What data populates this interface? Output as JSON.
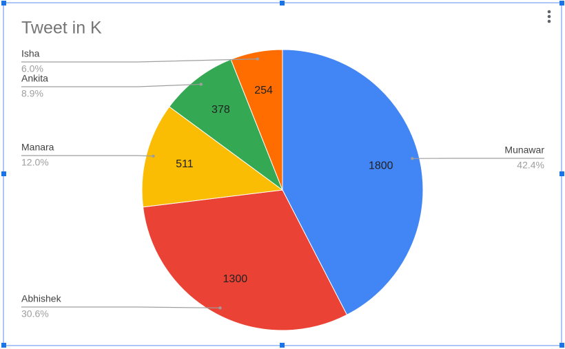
{
  "chart_data": {
    "type": "pie",
    "title": "Tweet in K",
    "categories": [
      "Munawar",
      "Abhishek",
      "Manara",
      "Ankita",
      "Isha"
    ],
    "values": [
      1800,
      1300,
      511,
      378,
      254
    ],
    "percent_labels": [
      "42.4%",
      "30.6%",
      "12.0%",
      "8.9%",
      "6.0%"
    ],
    "colors": [
      "#4285f4",
      "#ea4335",
      "#fbbc04",
      "#34a853",
      "#ff6d01"
    ]
  }
}
